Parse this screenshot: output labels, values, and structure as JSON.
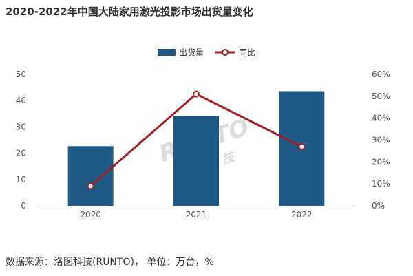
{
  "title": "2020-2022年中国大陆家用激光投影市场出货量变化",
  "footer": "数据来源：洛图科技(RUNTO)， 单位：万台，%",
  "watermark": {
    "latin": "RUNTO",
    "cjk": "洛图科技"
  },
  "colors": {
    "bar": "#1f5a86",
    "line": "#a31e21",
    "marker_fill": "#ffffff",
    "axis": "#bfbfbf",
    "watermark": "#dcdcdc"
  },
  "chart_data": {
    "type": "bar",
    "categories": [
      "2020",
      "2021",
      "2022"
    ],
    "series": [
      {
        "name": "出货量",
        "type": "bar",
        "axis": "left",
        "values": [
          22.7,
          34.2,
          43.6
        ]
      },
      {
        "name": "同比",
        "type": "line",
        "axis": "right",
        "values": [
          0.09,
          0.51,
          0.27
        ]
      }
    ],
    "y_left": {
      "min": 0,
      "max": 50,
      "ticks": [
        "0",
        "10",
        "20",
        "30",
        "40",
        "50"
      ]
    },
    "y_right": {
      "min": 0,
      "max": 0.6,
      "ticks": [
        "0%",
        "10%",
        "20%",
        "30%",
        "40%",
        "50%",
        "60%"
      ]
    },
    "legend_position": "top-center",
    "grid": false
  }
}
